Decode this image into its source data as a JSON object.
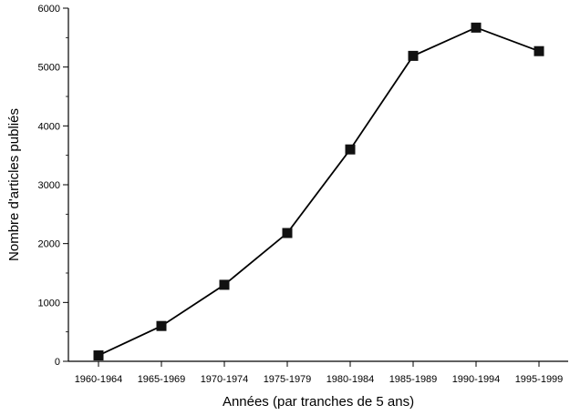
{
  "chart_data": {
    "type": "line",
    "title": "",
    "xlabel": "Années (par tranches de 5 ans)",
    "ylabel": "Nombre d'articles publiés",
    "categories": [
      "1960-1964",
      "1965-1969",
      "1970-1974",
      "1975-1979",
      "1980-1984",
      "1985-1989",
      "1990-1994",
      "1995-1999"
    ],
    "series": [
      {
        "values": [
          100,
          600,
          1300,
          2180,
          3600,
          5190,
          5670,
          5270
        ]
      }
    ],
    "ylim": [
      0,
      6000
    ],
    "yticks": [
      0,
      1000,
      2000,
      3000,
      4000,
      5000,
      6000
    ],
    "grid": false,
    "legend": "none",
    "marker": "square",
    "line_color": "#000000",
    "marker_color": "#111111"
  }
}
